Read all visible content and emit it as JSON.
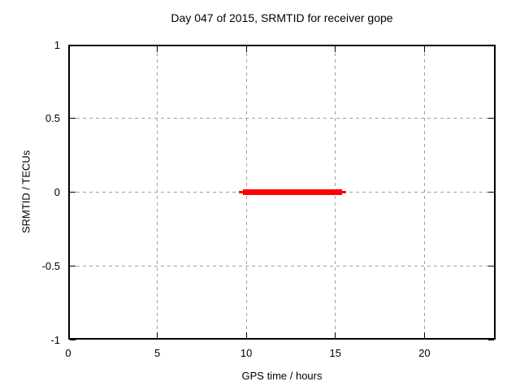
{
  "chart_data": {
    "type": "line",
    "title": "Day 047 of 2015, SRMTID for receiver gope",
    "xlabel": "GPS time / hours",
    "ylabel": "SRMTID / TECUs",
    "xlim": [
      0,
      24
    ],
    "ylim": [
      -1,
      1
    ],
    "xticks": [
      0,
      5,
      10,
      15,
      20
    ],
    "xtick_labels": [
      "0",
      "5",
      "10",
      "15",
      "20"
    ],
    "yticks": [
      -1,
      -0.5,
      0,
      0.5,
      1
    ],
    "ytick_labels": [
      "-1",
      "-0.5",
      "0",
      "0.5",
      "1"
    ],
    "grid": true,
    "grid_style": "dashed",
    "legend": "none",
    "colors": {
      "series": "#ff0000",
      "grid": "#a0a0a0",
      "border": "#000000",
      "text": "#000000",
      "background": "#ffffff"
    },
    "series": [
      {
        "name": "SRMTID",
        "shape": "horizontal-segment",
        "y_value": 0,
        "x_start": 9.6,
        "x_end": 15.6,
        "core_x_start": 9.82,
        "core_x_end": 15.38,
        "color": "#ff0000"
      }
    ]
  }
}
